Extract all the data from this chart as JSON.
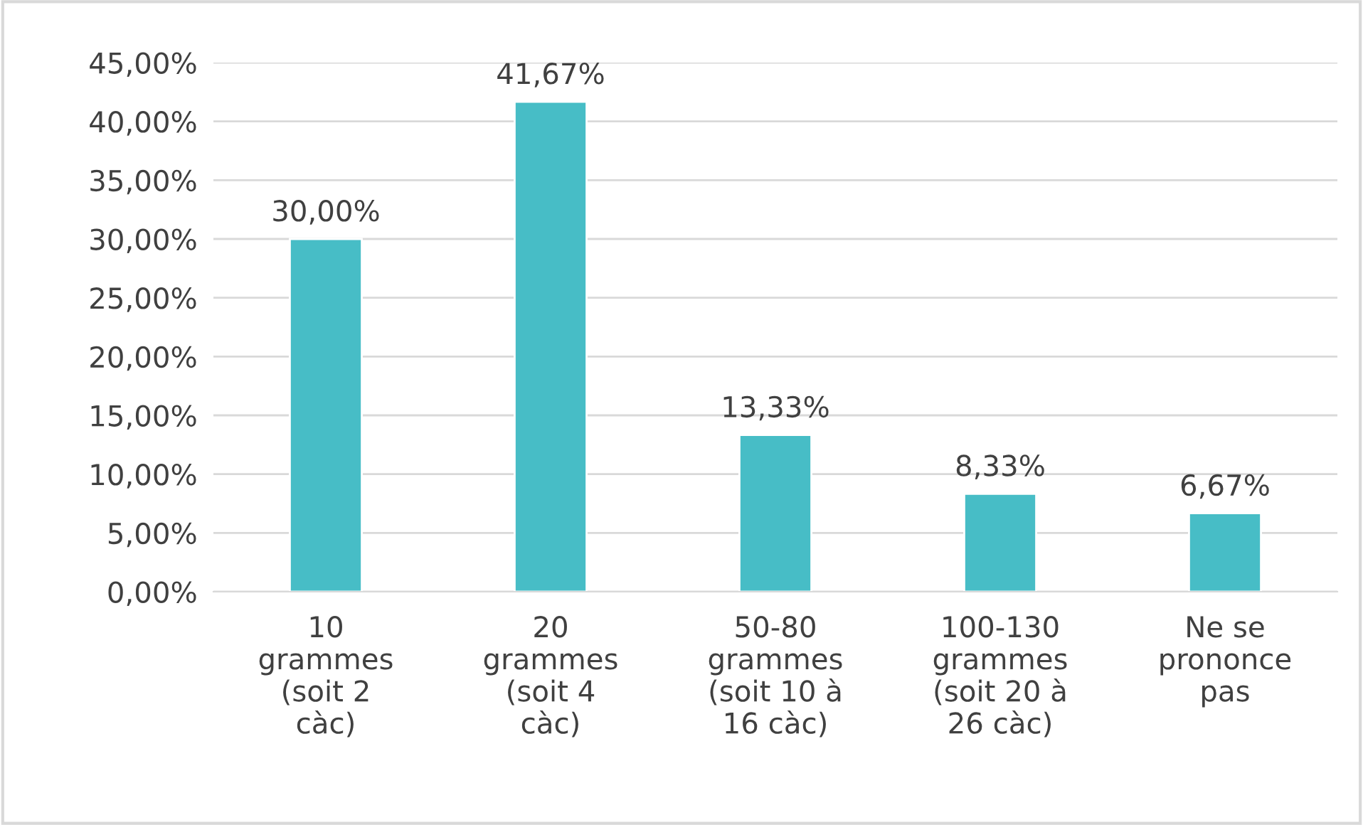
{
  "chart_data": {
    "type": "bar",
    "categories": [
      "10\ngrammes\n(soit 2\ncàc)",
      "20\ngrammes\n(soit 4\ncàc)",
      "50-80\ngrammes\n(soit 10 à\n16 càc)",
      "100-130\ngrammes\n(soit 20 à\n26 càc)",
      "Ne se\nprononce\npas"
    ],
    "values": [
      30.0,
      41.67,
      13.33,
      8.33,
      6.67
    ],
    "value_labels": [
      "30,00%",
      "41,67%",
      "13,33%",
      "8,33%",
      "6,67%"
    ],
    "color": "#47bdc6",
    "ylim": [
      0,
      45
    ],
    "yticks": [
      {
        "value": 0,
        "label": "0,00%"
      },
      {
        "value": 5,
        "label": "5,00%"
      },
      {
        "value": 10,
        "label": "10,00%"
      },
      {
        "value": 15,
        "label": "15,00%"
      },
      {
        "value": 20,
        "label": "20,00%"
      },
      {
        "value": 25,
        "label": "25,00%"
      },
      {
        "value": 30,
        "label": "30,00%"
      },
      {
        "value": 35,
        "label": "35,00%"
      },
      {
        "value": 40,
        "label": "40,00%"
      },
      {
        "value": 45,
        "label": "45,00%"
      }
    ],
    "grid": "y"
  }
}
